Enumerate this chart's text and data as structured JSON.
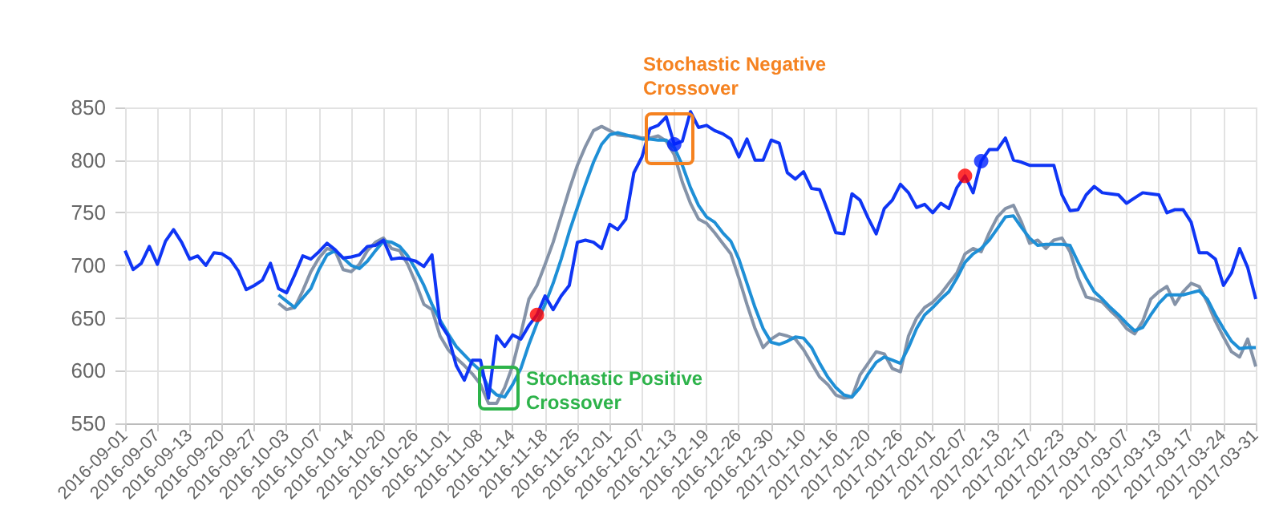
{
  "chart_data": {
    "type": "line",
    "categories": [
      "2016-09-01",
      null,
      null,
      null,
      "2016-09-07",
      null,
      null,
      null,
      "2016-09-13",
      null,
      null,
      null,
      "2016-09-20",
      null,
      null,
      null,
      "2016-09-27",
      null,
      null,
      null,
      "2016-10-03",
      null,
      null,
      null,
      "2016-10-07",
      null,
      null,
      null,
      "2016-10-14",
      null,
      null,
      null,
      "2016-10-20",
      null,
      null,
      null,
      "2016-10-26",
      null,
      null,
      null,
      "2016-11-01",
      null,
      null,
      null,
      "2016-11-08",
      null,
      null,
      null,
      "2016-11-14",
      null,
      null,
      null,
      "2016-11-18",
      null,
      null,
      null,
      "2016-11-25",
      null,
      null,
      null,
      "2016-12-01",
      null,
      null,
      null,
      "2016-12-07",
      null,
      null,
      null,
      "2016-12-13",
      null,
      null,
      null,
      "2016-12-19",
      null,
      null,
      null,
      "2016-12-26",
      null,
      null,
      null,
      "2016-12-30",
      null,
      null,
      null,
      "2017-01-10",
      null,
      null,
      null,
      "2017-01-16",
      null,
      null,
      null,
      "2017-01-20",
      null,
      null,
      null,
      "2017-01-26",
      null,
      null,
      null,
      "2017-02-01",
      null,
      null,
      null,
      "2017-02-07",
      null,
      null,
      null,
      "2017-02-13",
      null,
      null,
      null,
      "2017-02-17",
      null,
      null,
      null,
      "2017-02-23",
      null,
      null,
      null,
      "2017-03-01",
      null,
      null,
      null,
      "2017-03-07",
      null,
      null,
      null,
      "2017-03-13",
      null,
      null,
      null,
      "2017-03-17",
      null,
      null,
      null,
      "2017-03-24",
      null,
      null,
      null,
      "2017-03-31"
    ],
    "series": [
      {
        "color": "#8593a8",
        "values": [
          null,
          null,
          null,
          null,
          null,
          null,
          null,
          null,
          null,
          null,
          null,
          null,
          null,
          null,
          null,
          null,
          null,
          null,
          null,
          664,
          658,
          660,
          676,
          694,
          707,
          716,
          714,
          696,
          694,
          701,
          714,
          722,
          726,
          716,
          714,
          701,
          683,
          663,
          658,
          633,
          620,
          612,
          605,
          597,
          587,
          569,
          569,
          584,
          605,
          635,
          668,
          681,
          701,
          722,
          747,
          772,
          795,
          813,
          828,
          832,
          828,
          824,
          823,
          823,
          821,
          821,
          823,
          818,
          805,
          779,
          759,
          744,
          740,
          731,
          721,
          711,
          688,
          663,
          640,
          622,
          630,
          635,
          633,
          630,
          620,
          607,
          594,
          587,
          577,
          574,
          575,
          596,
          607,
          618,
          616,
          602,
          599,
          633,
          650,
          660,
          665,
          673,
          683,
          693,
          711,
          716,
          713,
          731,
          746,
          754,
          757,
          741,
          721,
          724,
          716,
          724,
          726,
          713,
          688,
          670,
          668,
          665,
          657,
          650,
          640,
          635,
          647,
          668,
          675,
          680,
          663,
          675,
          683,
          680,
          665,
          647,
          632,
          618,
          613,
          630,
          604
        ]
      },
      {
        "color": "#1e8fd6",
        "values": [
          null,
          null,
          null,
          null,
          null,
          null,
          null,
          null,
          null,
          null,
          null,
          null,
          null,
          null,
          null,
          null,
          null,
          null,
          null,
          672,
          666,
          660,
          669,
          678,
          696,
          710,
          714,
          707,
          700,
          697,
          704,
          714,
          723,
          722,
          718,
          709,
          696,
          681,
          663,
          648,
          635,
          623,
          615,
          607,
          600,
          584,
          577,
          575,
          587,
          602,
          625,
          645,
          663,
          683,
          706,
          732,
          755,
          777,
          798,
          815,
          824,
          826,
          824,
          822,
          820,
          820,
          819,
          819,
          812,
          795,
          774,
          757,
          746,
          741,
          731,
          723,
          706,
          683,
          660,
          640,
          627,
          625,
          628,
          632,
          631,
          622,
          607,
          594,
          584,
          577,
          575,
          584,
          597,
          608,
          613,
          610,
          607,
          622,
          640,
          653,
          660,
          668,
          675,
          688,
          703,
          711,
          716,
          724,
          735,
          746,
          747,
          736,
          726,
          719,
          720,
          720,
          720,
          719,
          703,
          688,
          675,
          668,
          660,
          653,
          645,
          638,
          641,
          653,
          664,
          672,
          672,
          672,
          674,
          676,
          668,
          653,
          640,
          628,
          621,
          622,
          622
        ]
      },
      {
        "color": "#0f35f5",
        "values": [
          714,
          696,
          702,
          718,
          701,
          723,
          734,
          722,
          706,
          709,
          700,
          712,
          711,
          706,
          695,
          677,
          681,
          686,
          702,
          678,
          674,
          691,
          709,
          706,
          713,
          721,
          715,
          707,
          708,
          710,
          718,
          719,
          724,
          706,
          707,
          706,
          704,
          699,
          710,
          645,
          633,
          605,
          591,
          610,
          610,
          574,
          633,
          623,
          634,
          630,
          643,
          653,
          671,
          658,
          671,
          681,
          722,
          724,
          722,
          716,
          739,
          734,
          744,
          788,
          803,
          830,
          833,
          841,
          815,
          818,
          846,
          831,
          833,
          828,
          825,
          820,
          803,
          820,
          800,
          800,
          819,
          816,
          788,
          782,
          789,
          773,
          772,
          752,
          731,
          730,
          768,
          762,
          745,
          730,
          754,
          762,
          777,
          769,
          755,
          758,
          750,
          759,
          754,
          774,
          785,
          769,
          799,
          810,
          810,
          821,
          800,
          798,
          795,
          795,
          795,
          795,
          767,
          752,
          753,
          767,
          775,
          769,
          768,
          767,
          759,
          764,
          769,
          768,
          767,
          750,
          753,
          753,
          741,
          712,
          712,
          706,
          681,
          693,
          716,
          698,
          668
        ]
      },
      {
        "type": "scatter",
        "color": "#ff0000",
        "values": [
          null,
          null,
          null,
          null,
          null,
          null,
          null,
          null,
          null,
          null,
          null,
          null,
          null,
          null,
          null,
          null,
          null,
          null,
          null,
          null,
          null,
          null,
          null,
          null,
          null,
          null,
          null,
          null,
          null,
          null,
          null,
          null,
          null,
          null,
          null,
          null,
          null,
          null,
          null,
          null,
          null,
          null,
          null,
          null,
          null,
          null,
          null,
          null,
          null,
          null,
          null,
          653,
          null,
          null,
          null,
          null,
          null,
          null,
          null,
          null,
          null,
          null,
          null,
          null,
          null,
          null,
          null,
          null,
          null,
          null,
          null,
          null,
          null,
          null,
          null,
          null,
          null,
          null,
          null,
          null,
          null,
          null,
          null,
          null,
          null,
          null,
          null,
          null,
          null,
          null,
          null,
          null,
          null,
          null,
          null,
          null,
          null,
          null,
          null,
          null,
          null,
          null,
          null,
          null,
          785,
          null,
          null,
          null,
          null,
          null,
          null,
          null,
          null,
          null,
          null,
          null,
          null,
          null,
          null,
          null,
          null,
          null,
          null,
          null,
          null,
          null,
          null,
          null,
          null,
          null,
          null,
          null,
          null,
          null,
          null,
          null,
          null,
          null,
          null,
          null,
          null
        ]
      },
      {
        "type": "scatter",
        "color": "#0022ff",
        "values": [
          null,
          null,
          null,
          null,
          null,
          null,
          null,
          null,
          null,
          null,
          null,
          null,
          null,
          null,
          null,
          null,
          null,
          null,
          null,
          null,
          null,
          null,
          null,
          null,
          null,
          null,
          null,
          null,
          null,
          null,
          null,
          null,
          null,
          null,
          null,
          null,
          null,
          null,
          null,
          null,
          null,
          null,
          null,
          null,
          null,
          null,
          null,
          null,
          null,
          null,
          null,
          null,
          null,
          null,
          null,
          null,
          null,
          null,
          null,
          null,
          null,
          null,
          null,
          null,
          null,
          null,
          null,
          null,
          815,
          null,
          null,
          null,
          null,
          null,
          null,
          null,
          null,
          null,
          null,
          null,
          null,
          null,
          null,
          null,
          null,
          null,
          null,
          null,
          null,
          null,
          null,
          null,
          null,
          null,
          null,
          null,
          null,
          null,
          null,
          null,
          null,
          null,
          null,
          null,
          null,
          null,
          799,
          null,
          null,
          null,
          null,
          null,
          null,
          null,
          null,
          null,
          null,
          null,
          null,
          null,
          null,
          null,
          null,
          null,
          null,
          null,
          null,
          null,
          null,
          null,
          null,
          null,
          null,
          null,
          null,
          null,
          null,
          null,
          null,
          null,
          null
        ]
      }
    ],
    "ylim": [
      550,
      850
    ],
    "yticks": [
      550,
      600,
      650,
      700,
      750,
      800,
      850
    ],
    "grid": true,
    "annotations": [
      "Stochastic Positive Crossover",
      "Stochastic Negative Crossover"
    ]
  }
}
